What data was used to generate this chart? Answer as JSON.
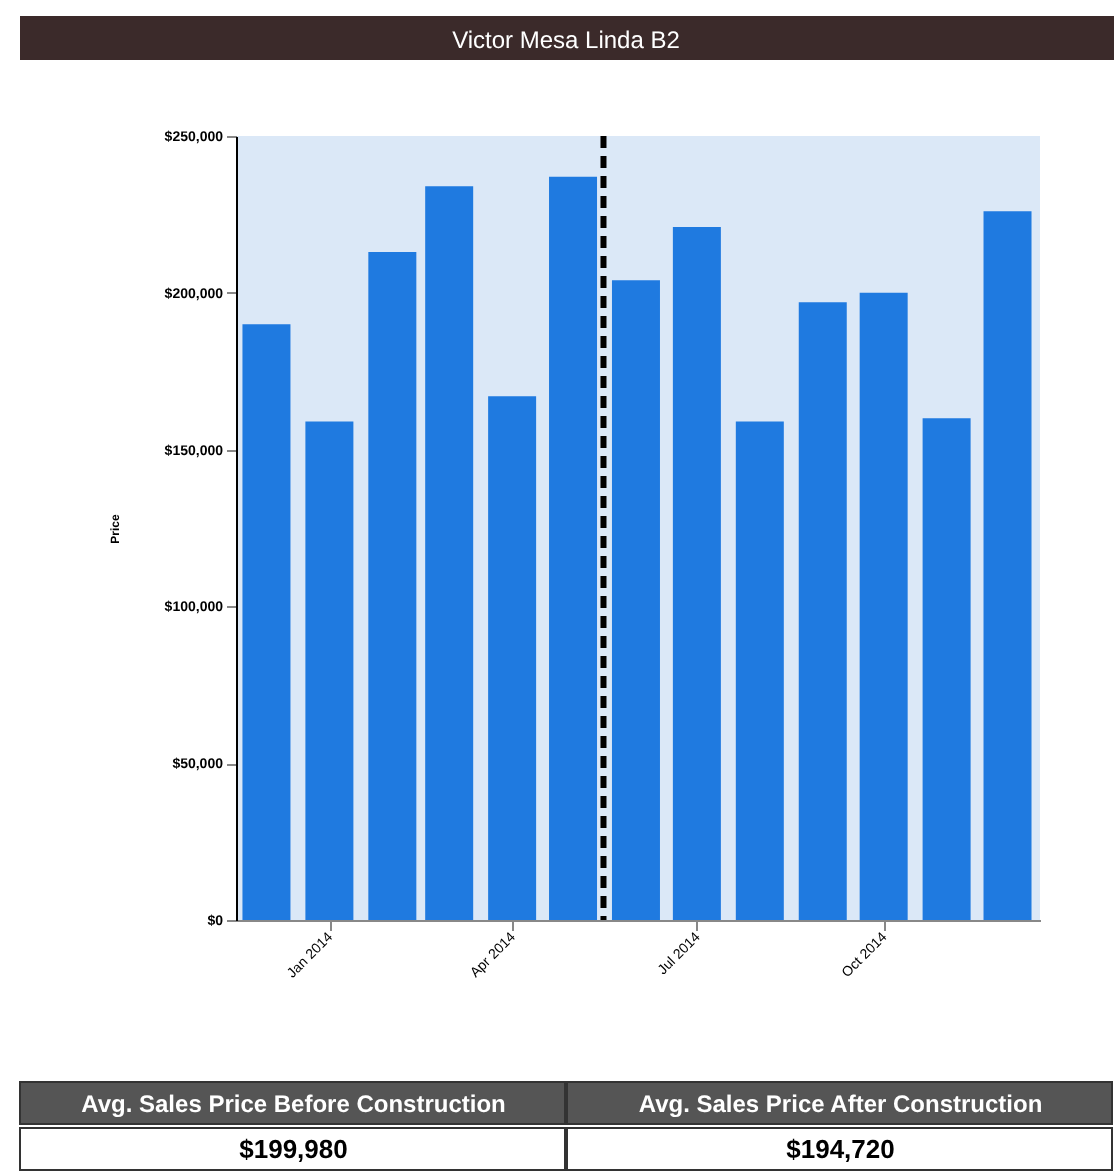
{
  "chart_data": {
    "type": "bar",
    "title": "Victor Mesa Linda B2",
    "ylabel": "Price",
    "x": [
      "2013-12",
      "2014-01",
      "2014-02",
      "2014-03",
      "2014-04",
      "2014-05",
      "2014-06",
      "2014-07",
      "2014-08",
      "2014-09",
      "2014-10",
      "2014-11",
      "2014-12"
    ],
    "values": [
      190000,
      159000,
      213000,
      234000,
      167000,
      237000,
      204000,
      221000,
      159000,
      197000,
      200000,
      160000,
      226000
    ],
    "color": "#1f7ae0",
    "xlim": [
      "2013-11-16",
      "2014-12-17"
    ],
    "xticks": [
      {
        "value": "2014-01",
        "label": "Jan 2014"
      },
      {
        "value": "2014-04",
        "label": "Apr 2014"
      },
      {
        "value": "2014-07",
        "label": "Jul 2014"
      },
      {
        "value": "2014-10",
        "label": "Oct 2014"
      }
    ],
    "ylim": [
      0,
      250000
    ],
    "yticks": [
      {
        "value": 0,
        "label": "$0"
      },
      {
        "value": 50000,
        "label": "$50,000"
      },
      {
        "value": 100000,
        "label": "$100,000"
      },
      {
        "value": 150000,
        "label": "$150,000"
      },
      {
        "value": 200000,
        "label": "$200,000"
      },
      {
        "value": 250000,
        "label": "$250,000"
      }
    ],
    "ref_lines": [
      {
        "axis": "x",
        "value": "2014-05-16",
        "color": "#000000",
        "line_style": "dashed"
      }
    ],
    "grid": false,
    "annotations": [
      "Avg. Sales Price Before Construction",
      "$199,980",
      "Avg. Sales Price After Construction",
      "$194,720"
    ]
  }
}
